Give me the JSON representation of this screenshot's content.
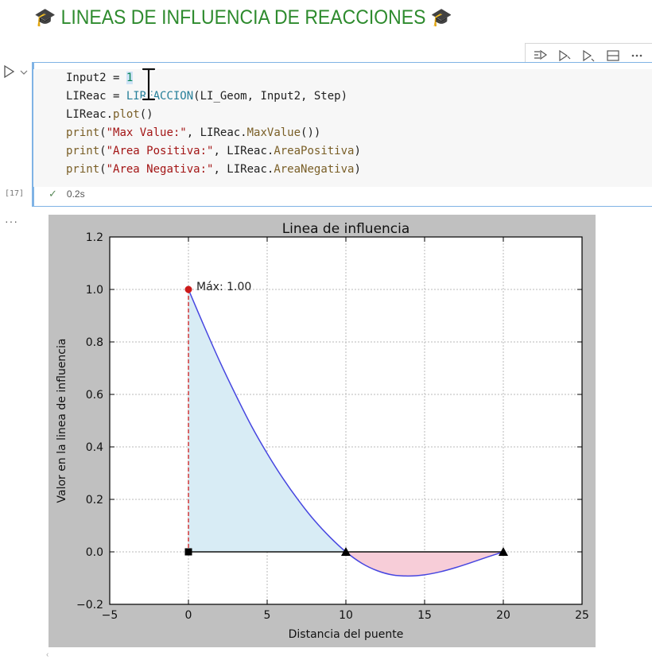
{
  "heading": {
    "cap_icon": "graduation-cap-icon",
    "text": "LINEAS DE INFLUENCIA DE REACCIONES",
    "color": "#2e8b2e"
  },
  "toolbar": {
    "icons": [
      "run-by-line-icon",
      "execute-above-icon",
      "execute-below-icon",
      "split-cell-icon",
      "more-icon"
    ]
  },
  "cell": {
    "execution_count": "[17]",
    "status_icon": "checkmark-icon",
    "status_time": "0.2s",
    "code": [
      [
        [
          "Input2 = ",
          "#1f1f1f"
        ],
        [
          "1",
          "#098658"
        ]
      ],
      [
        [
          "LIReac = ",
          "#1f1f1f"
        ],
        [
          "LIREACCION",
          "#267f99"
        ],
        [
          "(LI_Geom, Input2, Step)",
          "#1f1f1f"
        ]
      ],
      [
        [
          "LIReac.",
          "#1f1f1f"
        ],
        [
          "plot",
          "#795e26"
        ],
        [
          "()",
          "#1f1f1f"
        ]
      ],
      [
        [
          "print",
          "#795e26"
        ],
        [
          "(",
          "#1f1f1f"
        ],
        [
          "\"Max Value:\"",
          "#a31515"
        ],
        [
          ", LIReac.",
          "#1f1f1f"
        ],
        [
          "MaxValue",
          "#795e26"
        ],
        [
          "())",
          "#1f1f1f"
        ]
      ],
      [
        [
          "print",
          "#795e26"
        ],
        [
          "(",
          "#1f1f1f"
        ],
        [
          "\"Area Positiva:\"",
          "#a31515"
        ],
        [
          ", LIReac.",
          "#1f1f1f"
        ],
        [
          "AreaPositiva",
          "#795e26"
        ],
        [
          ")",
          "#1f1f1f"
        ]
      ],
      [
        [
          "print",
          "#795e26"
        ],
        [
          "(",
          "#1f1f1f"
        ],
        [
          "\"Area Negativa:\"",
          "#a31515"
        ],
        [
          ", LIReac.",
          "#1f1f1f"
        ],
        [
          "AreaNegativa",
          "#795e26"
        ],
        [
          ")",
          "#1f1f1f"
        ]
      ]
    ]
  },
  "output_more": "···",
  "chart_data": {
    "type": "line",
    "title": "Linea de influencia",
    "xlabel": "Distancia del puente",
    "ylabel": "Valor en la linea de influencia",
    "xlim": [
      -5,
      25
    ],
    "ylim": [
      -0.2,
      1.2
    ],
    "xticks": [
      -5,
      0,
      5,
      10,
      15,
      20,
      25
    ],
    "xtick_labels": [
      "−5",
      "0",
      "5",
      "10",
      "15",
      "20",
      "25"
    ],
    "yticks": [
      -0.2,
      0.0,
      0.2,
      0.4,
      0.6,
      0.8,
      1.0,
      1.2
    ],
    "ytick_labels": [
      "−0.2",
      "0.0",
      "0.2",
      "0.4",
      "0.6",
      "0.8",
      "1.0",
      "1.2"
    ],
    "grid": true,
    "series": [
      {
        "x": [
          0,
          1,
          2,
          3,
          4,
          5,
          6,
          7,
          8,
          9,
          10,
          11,
          12,
          13,
          14,
          15,
          16,
          17,
          18,
          19,
          20
        ],
        "y": [
          1.0,
          0.8595,
          0.724,
          0.5985,
          0.48,
          0.375,
          0.28,
          0.1955,
          0.12,
          0.0555,
          0.0,
          -0.0431,
          -0.072,
          -0.0884,
          -0.092,
          -0.0875,
          -0.076,
          -0.0595,
          -0.04,
          -0.0195,
          0.0
        ],
        "color": "#4646e0"
      }
    ],
    "positive_fill": "#d8ecf5",
    "negative_fill": "#f7cdd8",
    "max_point": {
      "x": 0,
      "y": 1.0,
      "label": "Máx: 1.00",
      "color": "#cc1a1a"
    },
    "supports": [
      {
        "x": 0,
        "kind": "square"
      },
      {
        "x": 10,
        "kind": "triangle"
      },
      {
        "x": 20,
        "kind": "triangle"
      }
    ]
  }
}
